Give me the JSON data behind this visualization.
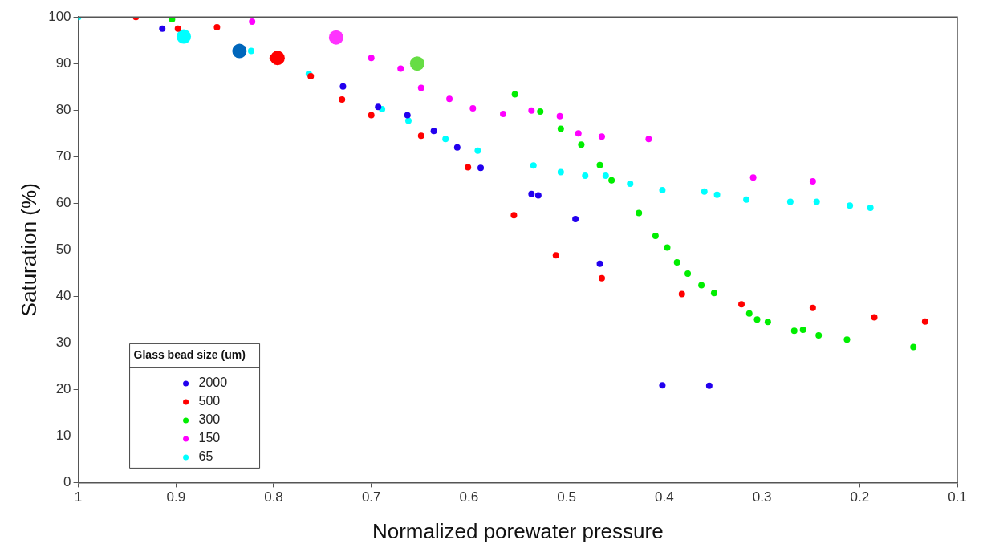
{
  "chart_data": {
    "type": "scatter",
    "xlabel": "Normalized porewater pressure",
    "ylabel": "Saturation (%)",
    "legend_title": "Glass bead size (um)",
    "legend": "bottom left",
    "marker": "circle",
    "grid": false,
    "xlim": [
      1,
      0.1
    ],
    "xticks": [
      1,
      0.9,
      0.8,
      0.7,
      0.6,
      0.5,
      0.4,
      0.3,
      0.2,
      0.1
    ],
    "ylim": [
      0,
      100
    ],
    "yticks": [
      0,
      10,
      20,
      30,
      40,
      50,
      60,
      70,
      80,
      90,
      100
    ],
    "series": [
      {
        "name": "2000",
        "color": "#2200ee",
        "x": [
          0.914,
          0.729,
          0.693,
          0.663,
          0.636,
          0.612,
          0.588,
          0.536,
          0.529,
          0.491,
          0.466,
          0.402,
          0.354
        ],
        "values": [
          97.5,
          85.1,
          80.7,
          78.9,
          75.5,
          72.0,
          67.6,
          62.0,
          61.7,
          56.6,
          47.0,
          20.9,
          20.8
        ]
      },
      {
        "name": "500",
        "color": "#ff0000",
        "x": [
          0.941,
          0.898,
          0.858,
          0.801,
          0.762,
          0.73,
          0.7,
          0.649,
          0.601,
          0.554,
          0.511,
          0.464,
          0.382,
          0.321,
          0.248,
          0.185,
          0.133
        ],
        "values": [
          100,
          97.5,
          97.8,
          91.2,
          87.3,
          82.3,
          78.9,
          74.5,
          67.7,
          57.4,
          48.8,
          43.9,
          40.5,
          38.3,
          37.5,
          35.5,
          34.6
        ]
      },
      {
        "name": "300",
        "color": "#00ee00",
        "x": [
          0.904,
          0.553,
          0.527,
          0.506,
          0.485,
          0.466,
          0.454,
          0.426,
          0.409,
          0.397,
          0.387,
          0.376,
          0.362,
          0.349,
          0.313,
          0.305,
          0.294,
          0.267,
          0.258,
          0.242,
          0.213,
          0.145
        ],
        "values": [
          99.5,
          83.4,
          79.7,
          76.0,
          72.6,
          68.2,
          64.9,
          57.9,
          53.0,
          50.5,
          47.3,
          44.9,
          42.4,
          40.7,
          36.3,
          35.0,
          34.5,
          32.6,
          32.8,
          31.6,
          30.7,
          29.1
        ]
      },
      {
        "name": "150",
        "color": "#ff00ff",
        "x": [
          0.822,
          0.7,
          0.67,
          0.649,
          0.62,
          0.596,
          0.565,
          0.536,
          0.507,
          0.488,
          0.464,
          0.416,
          0.309,
          0.248
        ],
        "values": [
          99.0,
          91.2,
          88.9,
          84.8,
          82.4,
          80.4,
          79.2,
          79.9,
          78.7,
          75.0,
          74.3,
          73.8,
          65.5,
          64.7
        ]
      },
      {
        "name": "65",
        "color": "#00ffff",
        "x": [
          1.0,
          0.823,
          0.764,
          0.689,
          0.662,
          0.624,
          0.591,
          0.534,
          0.506,
          0.481,
          0.46,
          0.435,
          0.402,
          0.359,
          0.346,
          0.316,
          0.271,
          0.244,
          0.21,
          0.189
        ],
        "values": [
          100,
          92.7,
          87.8,
          80.2,
          77.7,
          73.8,
          71.3,
          68.1,
          66.7,
          65.9,
          65.9,
          64.2,
          62.8,
          62.5,
          61.8,
          60.8,
          60.3,
          60.3,
          59.5,
          59.0
        ]
      },
      {
        "type": "bubble",
        "color": "#00ffff",
        "x": [
          0.892
        ],
        "values": [
          95.8
        ],
        "sizes": [
          1
        ]
      },
      {
        "type": "bubble",
        "color": "#0066bb",
        "x": [
          0.835
        ],
        "values": [
          92.7
        ],
        "sizes": [
          1
        ]
      },
      {
        "type": "bubble",
        "color": "#ff0000",
        "x": [
          0.796
        ],
        "values": [
          91.2
        ],
        "sizes": [
          1
        ]
      },
      {
        "type": "bubble",
        "color": "#ff33ff",
        "x": [
          0.736
        ],
        "values": [
          95.6
        ],
        "sizes": [
          1
        ]
      },
      {
        "type": "bubble",
        "color": "#66dd44",
        "x": [
          0.653
        ],
        "values": [
          90.0
        ],
        "sizes": [
          1
        ]
      }
    ]
  }
}
